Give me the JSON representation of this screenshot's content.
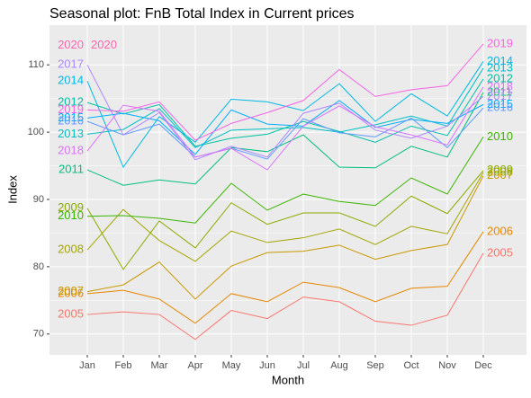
{
  "chart_data": {
    "type": "line",
    "title": "Seasonal plot: FnB Total Index in Current prices",
    "x_label": "Month",
    "y_label": "Index",
    "categories": [
      "Jan",
      "Feb",
      "Mar",
      "Apr",
      "May",
      "Jun",
      "Jul",
      "Aug",
      "Sep",
      "Oct",
      "Nov",
      "Dec"
    ],
    "ylim": [
      66.9,
      115.9
    ],
    "yticks": [
      70,
      80,
      90,
      100,
      110
    ],
    "grid": true,
    "series": [
      {
        "name": "2005",
        "color": "#F8766D",
        "values": [
          72.9,
          73.3,
          72.9,
          69.2,
          73.5,
          72.3,
          75.5,
          74.8,
          71.9,
          71.3,
          72.8,
          82.0
        ]
      },
      {
        "name": "2006",
        "color": "#E58700",
        "values": [
          76.0,
          76.5,
          75.2,
          71.6,
          76.0,
          74.8,
          77.7,
          76.9,
          74.8,
          76.8,
          77.1,
          85.2
        ]
      },
      {
        "name": "2007",
        "color": "#C99800",
        "values": [
          76.3,
          77.3,
          80.7,
          75.2,
          80.1,
          82.1,
          82.3,
          83.2,
          81.1,
          82.4,
          83.3,
          93.5
        ]
      },
      {
        "name": "2008",
        "color": "#A3A500",
        "values": [
          82.5,
          88.5,
          83.9,
          80.8,
          85.3,
          83.6,
          84.3,
          85.6,
          83.3,
          86.0,
          84.9,
          94.0
        ]
      },
      {
        "name": "2009",
        "color": "#8AAB00",
        "values": [
          88.7,
          79.6,
          86.8,
          82.8,
          89.5,
          86.3,
          88.0,
          88.0,
          86.0,
          90.5,
          87.9,
          94.3
        ]
      },
      {
        "name": "2010",
        "color": "#39B600",
        "values": [
          87.5,
          87.6,
          87.2,
          86.5,
          92.4,
          88.4,
          90.8,
          89.7,
          89.1,
          93.2,
          90.8,
          99.3
        ]
      },
      {
        "name": "2011",
        "color": "#00BF7D",
        "values": [
          94.4,
          92.1,
          92.9,
          92.3,
          97.7,
          97.1,
          99.6,
          94.8,
          94.7,
          97.9,
          96.3,
          105.9
        ]
      },
      {
        "name": "2012",
        "color": "#00C1A3",
        "values": [
          104.4,
          102.7,
          104.1,
          97.9,
          99.1,
          99.7,
          101.6,
          100.1,
          98.5,
          100.9,
          99.5,
          107.9
        ]
      },
      {
        "name": "2013",
        "color": "#00BFC4",
        "values": [
          99.7,
          100.4,
          103.5,
          97.7,
          100.3,
          100.5,
          100.7,
          100.0,
          101.1,
          102.4,
          100.9,
          109.5
        ]
      },
      {
        "name": "2014",
        "color": "#00B9E3",
        "values": [
          107.6,
          94.8,
          102.3,
          98.5,
          104.9,
          104.5,
          103.2,
          107.2,
          101.6,
          105.7,
          102.4,
          110.5
        ]
      },
      {
        "name": "2015",
        "color": "#00ADFA",
        "values": [
          102.1,
          102.8,
          101.7,
          96.7,
          103.3,
          101.2,
          100.9,
          104.7,
          100.7,
          101.9,
          101.3,
          104.1
        ]
      },
      {
        "name": "2016",
        "color": "#619CFF",
        "values": [
          101.6,
          99.6,
          101.2,
          96.3,
          97.6,
          96.0,
          102.0,
          99.9,
          99.3,
          102.1,
          97.7,
          103.6
        ]
      },
      {
        "name": "2017",
        "color": "#AE87FF",
        "values": [
          110.0,
          99.6,
          102.9,
          95.9,
          97.9,
          96.3,
          102.8,
          104.3,
          100.3,
          99.1,
          100.9,
          105.3
        ]
      },
      {
        "name": "2018",
        "color": "#DB72FB",
        "values": [
          97.2,
          104.0,
          103.1,
          96.3,
          97.6,
          94.4,
          100.9,
          103.9,
          100.8,
          99.6,
          98.1,
          106.7
        ]
      },
      {
        "name": "2019",
        "color": "#F564E3",
        "values": [
          103.3,
          103.1,
          104.5,
          98.8,
          101.3,
          102.9,
          104.7,
          109.3,
          105.3,
          106.3,
          106.9,
          113.1
        ]
      },
      {
        "name": "2020",
        "color": "#FF64B0",
        "values": [
          112.9,
          null,
          null,
          null,
          null,
          null,
          null,
          null,
          null,
          null,
          null,
          null
        ]
      }
    ]
  }
}
